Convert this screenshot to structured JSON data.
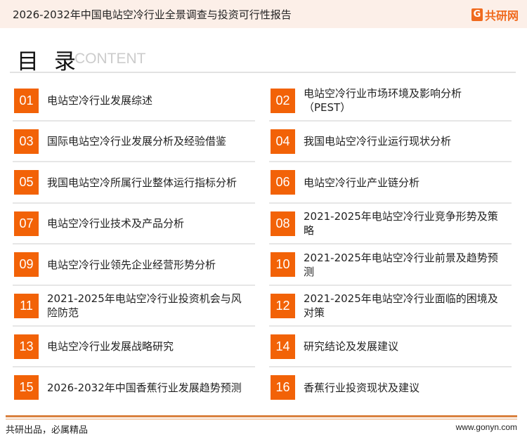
{
  "header": {
    "title": "2026-2032年中国电站空冷行业全景调查与投资可行性报告",
    "logo": "共研网",
    "logo_mark": "G"
  },
  "toc": {
    "title": "目 录",
    "subtitle": "CONTENT"
  },
  "items": [
    {
      "num": "01",
      "label": "电站空冷行业发展综述"
    },
    {
      "num": "02",
      "label": "电站空冷行业市场环境及影响分析（PEST）"
    },
    {
      "num": "03",
      "label": "国际电站空冷行业发展分析及经验借鉴"
    },
    {
      "num": "04",
      "label": "我国电站空冷行业运行现状分析"
    },
    {
      "num": "05",
      "label": "我国电站空冷所属行业整体运行指标分析"
    },
    {
      "num": "06",
      "label": "电站空冷行业产业链分析"
    },
    {
      "num": "07",
      "label": "电站空冷行业技术及产品分析"
    },
    {
      "num": "08",
      "label": "2021-2025年电站空冷行业竞争形势及策略"
    },
    {
      "num": "09",
      "label": "电站空冷行业领先企业经营形势分析"
    },
    {
      "num": "10",
      "label": "2021-2025年电站空冷行业前景及趋势预测"
    },
    {
      "num": "11",
      "label": "2021-2025年电站空冷行业投资机会与风险防范"
    },
    {
      "num": "12",
      "label": "2021-2025年电站空冷行业面临的困境及对策"
    },
    {
      "num": "13",
      "label": "电站空冷行业发展战略研究"
    },
    {
      "num": "14",
      "label": "研究结论及发展建议"
    },
    {
      "num": "15",
      "label": "2026-2032年中国香蕉行业发展趋势预测"
    },
    {
      "num": "16",
      "label": "香蕉行业投资现状及建议"
    }
  ],
  "footer": {
    "slogan": "共研出品，必属精品",
    "website": "www.gonyn.com"
  }
}
